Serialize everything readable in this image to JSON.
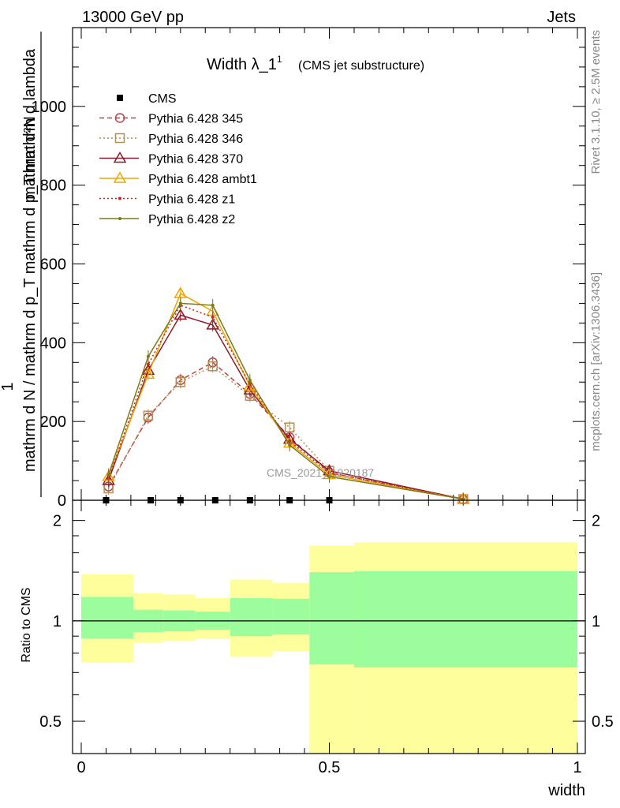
{
  "header": {
    "energy_label": "13000 GeV pp",
    "category_label": "Jets"
  },
  "side_labels": {
    "rivet": "Rivet 3.1.10, ≥ 2.5M events",
    "mcplots": "mcplots.cern.ch [arXiv:1306.3436]"
  },
  "watermark": "CMS_2021_I1920187",
  "chart_data": [
    {
      "type": "line",
      "title": "Width λ_1",
      "title_superscript": "1",
      "subtitle": "(CMS jet substructure)",
      "ylabel_numerator": "mathrm d²N",
      "ylabel_numerator_sub": "1",
      "ylabel_denominator": "mathrm d N / mathrm d p_T mathrm d p_T mathrm d lambda",
      "xlim": [
        0,
        1
      ],
      "ylim": [
        0,
        1200
      ],
      "yticks": [
        0,
        200,
        400,
        600,
        800,
        1000
      ],
      "legend_position": "top-left",
      "series": [
        {
          "name": "CMS",
          "color": "#000000",
          "style": "data",
          "marker": "square-filled",
          "x": [
            0.05,
            0.14,
            0.2,
            0.27,
            0.34,
            0.42,
            0.5
          ],
          "y": [
            0,
            0,
            0,
            0,
            0,
            0,
            0
          ]
        },
        {
          "name": "Pythia 6.428 345",
          "color": "#b5454b",
          "style": "dashed",
          "marker": "circle-open",
          "x": [
            0.055,
            0.135,
            0.2,
            0.265,
            0.34,
            0.42,
            0.5,
            0.77
          ],
          "y": [
            35,
            210,
            305,
            350,
            270,
            160,
            70,
            2
          ]
        },
        {
          "name": "Pythia 6.428 346",
          "color": "#b58f52",
          "style": "dotted",
          "marker": "square-open",
          "x": [
            0.055,
            0.135,
            0.2,
            0.265,
            0.34,
            0.42,
            0.5,
            0.77
          ],
          "y": [
            30,
            215,
            300,
            340,
            265,
            185,
            75,
            3
          ]
        },
        {
          "name": "Pythia 6.428 370",
          "color": "#8b1a2b",
          "style": "solid",
          "marker": "triangle-open",
          "x": [
            0.055,
            0.135,
            0.2,
            0.265,
            0.34,
            0.42,
            0.5,
            0.77
          ],
          "y": [
            50,
            330,
            470,
            445,
            280,
            155,
            75,
            3
          ]
        },
        {
          "name": "Pythia 6.428 ambt1",
          "color": "#f0a500",
          "style": "solid",
          "marker": "triangle-open",
          "x": [
            0.055,
            0.135,
            0.2,
            0.265,
            0.34,
            0.42,
            0.5,
            0.77
          ],
          "y": [
            60,
            320,
            525,
            480,
            290,
            145,
            65,
            3
          ]
        },
        {
          "name": "Pythia 6.428 z1",
          "color": "#c0281c",
          "style": "dotted",
          "marker": "dot",
          "x": [
            0.055,
            0.135,
            0.2,
            0.265,
            0.34,
            0.42,
            0.5,
            0.77
          ],
          "y": [
            55,
            345,
            495,
            465,
            295,
            150,
            70,
            3
          ]
        },
        {
          "name": "Pythia 6.428 z2",
          "color": "#7a7a18",
          "style": "solid",
          "marker": "dot",
          "x": [
            0.055,
            0.135,
            0.2,
            0.265,
            0.34,
            0.42,
            0.5,
            0.77
          ],
          "y": [
            65,
            365,
            500,
            495,
            305,
            140,
            60,
            3
          ]
        }
      ]
    },
    {
      "type": "area",
      "ylabel": "Ratio to CMS",
      "xlabel": "width",
      "xlim": [
        0,
        1
      ],
      "ylim": [
        0.4,
        2.3
      ],
      "scale": "log",
      "yticks": [
        0.5,
        1,
        2
      ],
      "xticks": [
        0,
        0.5,
        1
      ],
      "reference_line": 1,
      "bins": [
        {
          "x0": 0,
          "x1": 0.105,
          "inner": [
            0.885,
            1.18
          ],
          "outer": [
            0.75,
            1.38
          ]
        },
        {
          "x0": 0.105,
          "x1": 0.165,
          "inner": [
            0.925,
            1.08
          ],
          "outer": [
            0.86,
            1.21
          ]
        },
        {
          "x0": 0.165,
          "x1": 0.23,
          "inner": [
            0.93,
            1.075
          ],
          "outer": [
            0.87,
            1.2
          ]
        },
        {
          "x0": 0.23,
          "x1": 0.3,
          "inner": [
            0.94,
            1.065
          ],
          "outer": [
            0.885,
            1.17
          ]
        },
        {
          "x0": 0.3,
          "x1": 0.385,
          "inner": [
            0.9,
            1.17
          ],
          "outer": [
            0.78,
            1.33
          ]
        },
        {
          "x0": 0.385,
          "x1": 0.46,
          "inner": [
            0.91,
            1.165
          ],
          "outer": [
            0.81,
            1.3
          ]
        },
        {
          "x0": 0.46,
          "x1": 0.55,
          "inner": [
            0.74,
            1.4
          ],
          "outer": [
            0.4,
            1.68
          ]
        },
        {
          "x0": 0.55,
          "x1": 1.0,
          "inner": [
            0.725,
            1.41
          ],
          "outer": [
            0.4,
            1.72
          ]
        }
      ],
      "colors": {
        "inner": "#9cfd9c",
        "outer": "#fffe9c"
      }
    }
  ]
}
